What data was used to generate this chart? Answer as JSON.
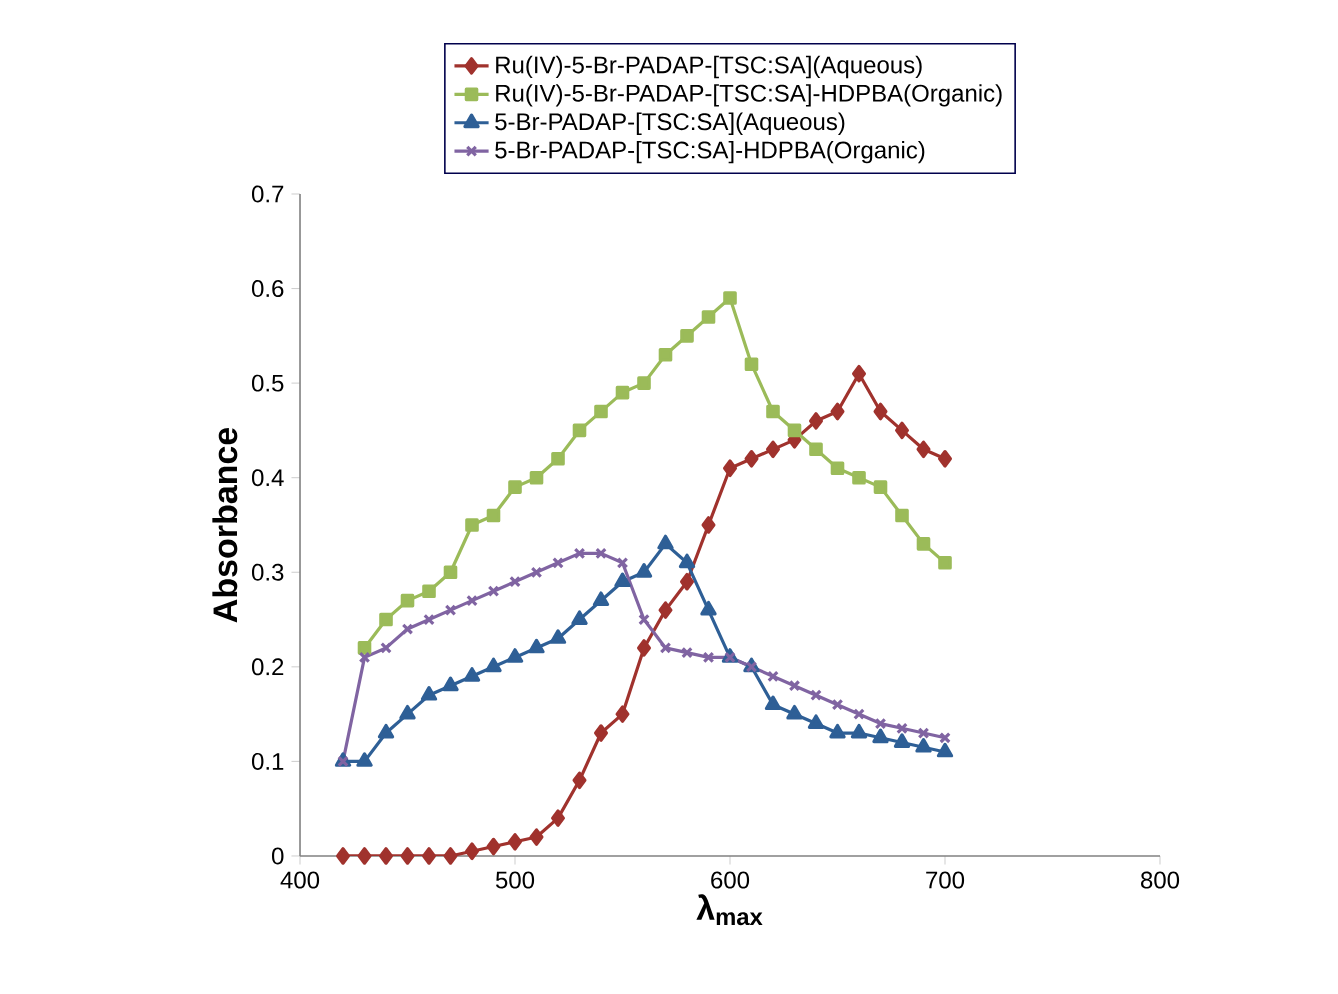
{
  "chart_data": {
    "type": "line",
    "xlabel": "λ$_{max}$",
    "ylabel": "Absorbance",
    "xlim": [
      400,
      800
    ],
    "xticks": [
      400,
      500,
      600,
      700,
      800
    ],
    "ylim": [
      0,
      0.7
    ],
    "yticks": [
      0,
      0.1,
      0.2,
      0.3,
      0.4,
      0.5,
      0.6,
      0.7
    ],
    "x": [
      420,
      430,
      440,
      450,
      460,
      470,
      480,
      490,
      500,
      510,
      520,
      530,
      540,
      550,
      560,
      570,
      580,
      590,
      600,
      610,
      620,
      630,
      640,
      650,
      660,
      670,
      680,
      690,
      700
    ],
    "legend": "top",
    "grid": false,
    "series": [
      {
        "name": "Ru(IV)-5-Br-PADAP-[TSC:SA](Aqueous)",
        "color": "#a0322d",
        "marker": "diamond",
        "values": [
          0,
          0,
          0,
          0,
          0,
          0,
          0.005,
          0.01,
          0.015,
          0.02,
          0.04,
          0.08,
          0.13,
          0.15,
          0.22,
          0.26,
          0.29,
          0.35,
          0.41,
          0.42,
          0.43,
          0.44,
          0.46,
          0.47,
          0.51,
          0.47,
          0.45,
          0.43,
          0.42
        ]
      },
      {
        "name": "Ru(IV)-5-Br-PADAP-[TSC:SA]-HDPBA(Organic)",
        "color": "#9bbb59",
        "marker": "square",
        "values": [
          null,
          0.22,
          0.25,
          0.27,
          0.28,
          0.3,
          0.35,
          0.36,
          0.39,
          0.4,
          0.42,
          0.45,
          0.47,
          0.49,
          0.5,
          0.53,
          0.55,
          0.57,
          0.59,
          0.52,
          0.47,
          0.45,
          0.43,
          0.41,
          0.4,
          0.39,
          0.36,
          0.33,
          0.31
        ]
      },
      {
        "name": "5-Br-PADAP-[TSC:SA](Aqueous)",
        "color": "#2e5f96",
        "marker": "triangle",
        "values": [
          0.1,
          0.1,
          0.13,
          0.15,
          0.17,
          0.18,
          0.19,
          0.2,
          0.21,
          0.22,
          0.23,
          0.25,
          0.27,
          0.29,
          0.3,
          0.33,
          0.31,
          0.26,
          0.21,
          0.2,
          0.16,
          0.15,
          0.14,
          0.13,
          0.13,
          0.125,
          0.12,
          0.115,
          0.11
        ]
      },
      {
        "name": "5-Br-PADAP-[TSC:SA]-HDPBA(Organic)",
        "color": "#8064a2",
        "marker": "cross",
        "values": [
          0.1,
          0.21,
          0.22,
          0.24,
          0.25,
          0.26,
          0.27,
          0.28,
          0.29,
          0.3,
          0.31,
          0.32,
          0.32,
          0.31,
          0.25,
          0.22,
          0.215,
          0.21,
          0.21,
          0.2,
          0.19,
          0.18,
          0.17,
          0.16,
          0.15,
          0.14,
          0.135,
          0.13,
          0.125
        ]
      }
    ]
  }
}
